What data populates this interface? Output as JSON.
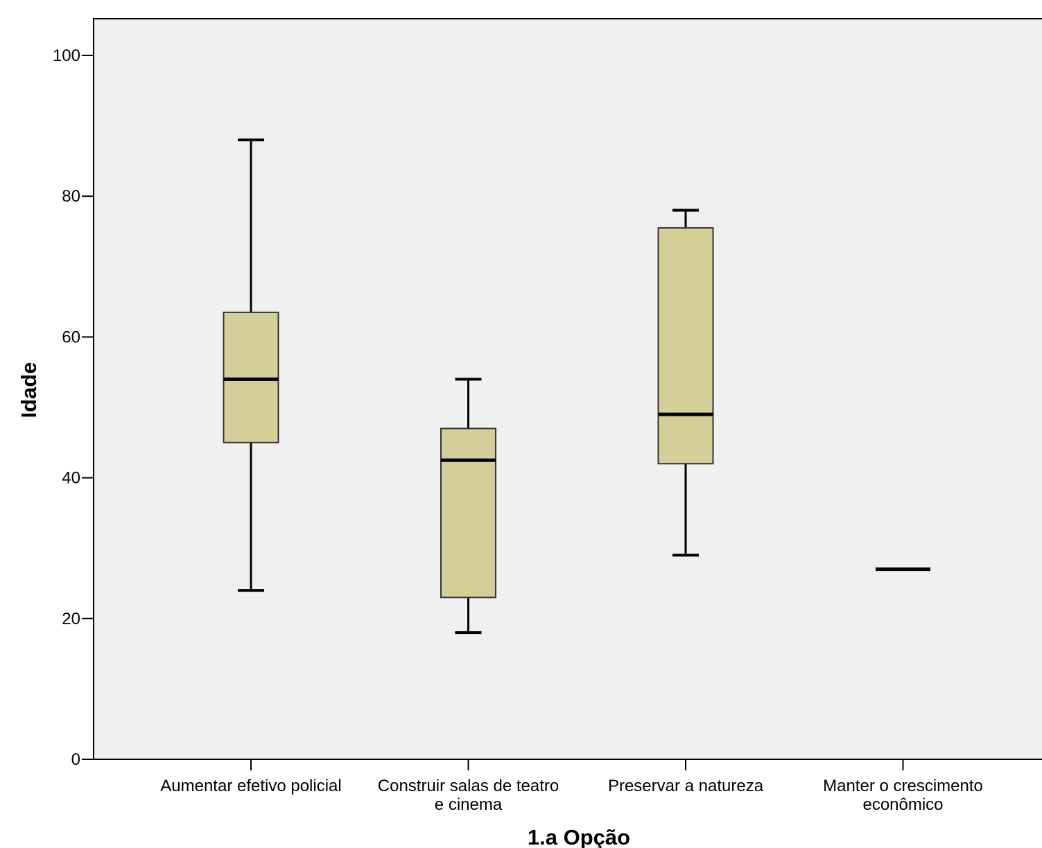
{
  "chart_data": {
    "type": "boxplot",
    "title": "",
    "xlabel": "1.a Opção",
    "ylabel": "Idade",
    "ylim": [
      0,
      105
    ],
    "yticks": [
      0,
      20,
      40,
      60,
      80,
      100
    ],
    "grid": false,
    "colors": {
      "box_fill": "#d4cf98",
      "plot_background": "#f0f0f0",
      "line": "#000000"
    },
    "categories": [
      {
        "label_lines": [
          "Aumentar efetivo policial"
        ],
        "min": 24,
        "q1": 45,
        "median": 54,
        "q3": 63.5,
        "max": 88
      },
      {
        "label_lines": [
          "Construir salas de teatro",
          "e cinema"
        ],
        "min": 18,
        "q1": 23,
        "median": 42.5,
        "q3": 47,
        "max": 54
      },
      {
        "label_lines": [
          "Preservar a natureza"
        ],
        "min": 29,
        "q1": 42,
        "median": 49,
        "q3": 75.5,
        "max": 78
      },
      {
        "label_lines": [
          "Manter o crescimento",
          "econômico"
        ],
        "min": 27,
        "q1": 27,
        "median": 27,
        "q3": 27,
        "max": 27
      }
    ]
  }
}
